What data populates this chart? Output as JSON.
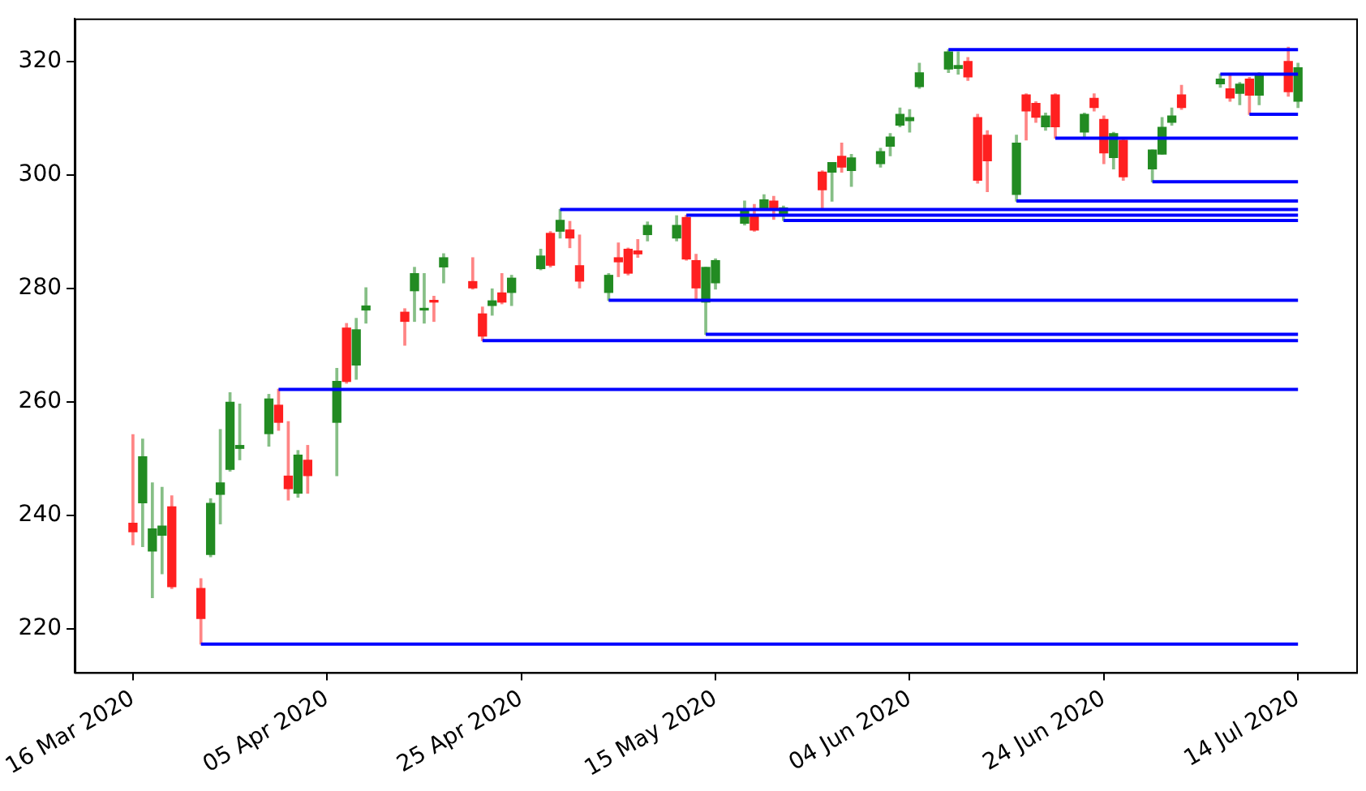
{
  "chart_data": {
    "type": "candlestick",
    "x": [
      "2020-03-16",
      "2020-03-17",
      "2020-03-18",
      "2020-03-19",
      "2020-03-20",
      "2020-03-23",
      "2020-03-24",
      "2020-03-25",
      "2020-03-26",
      "2020-03-27",
      "2020-03-30",
      "2020-03-31",
      "2020-04-01",
      "2020-04-02",
      "2020-04-03",
      "2020-04-06",
      "2020-04-07",
      "2020-04-08",
      "2020-04-09",
      "2020-04-13",
      "2020-04-14",
      "2020-04-15",
      "2020-04-16",
      "2020-04-17",
      "2020-04-20",
      "2020-04-21",
      "2020-04-22",
      "2020-04-23",
      "2020-04-24",
      "2020-04-27",
      "2020-04-28",
      "2020-04-29",
      "2020-04-30",
      "2020-05-01",
      "2020-05-04",
      "2020-05-05",
      "2020-05-06",
      "2020-05-07",
      "2020-05-08",
      "2020-05-11",
      "2020-05-12",
      "2020-05-13",
      "2020-05-14",
      "2020-05-15",
      "2020-05-18",
      "2020-05-19",
      "2020-05-20",
      "2020-05-21",
      "2020-05-22",
      "2020-05-26",
      "2020-05-27",
      "2020-05-28",
      "2020-05-29",
      "2020-06-01",
      "2020-06-02",
      "2020-06-03",
      "2020-06-04",
      "2020-06-05",
      "2020-06-08",
      "2020-06-09",
      "2020-06-10",
      "2020-06-11",
      "2020-06-12",
      "2020-06-15",
      "2020-06-16",
      "2020-06-17",
      "2020-06-18",
      "2020-06-19",
      "2020-06-22",
      "2020-06-23",
      "2020-06-24",
      "2020-06-25",
      "2020-06-26",
      "2020-06-29",
      "2020-06-30",
      "2020-07-01",
      "2020-07-02",
      "2020-07-06",
      "2020-07-07",
      "2020-07-08",
      "2020-07-09",
      "2020-07-10",
      "2020-07-13",
      "2020-07-14"
    ],
    "ohlc": [
      [
        238.6,
        254.2,
        234.8,
        237.1
      ],
      [
        242.2,
        253.4,
        234.5,
        250.3
      ],
      [
        233.7,
        245.7,
        225.5,
        237.6
      ],
      [
        236.5,
        244.9,
        229.7,
        238.1
      ],
      [
        241.5,
        243.4,
        227.1,
        227.4
      ],
      [
        227.1,
        228.8,
        217.3,
        221.8
      ],
      [
        233.1,
        242.9,
        232.7,
        242.1
      ],
      [
        243.7,
        255.1,
        238.5,
        245.7
      ],
      [
        248.1,
        261.6,
        247.8,
        259.9
      ],
      [
        251.8,
        259.6,
        249.8,
        252.3
      ],
      [
        254.4,
        261.3,
        252.2,
        260.5
      ],
      [
        259.4,
        262.2,
        255.0,
        256.4
      ],
      [
        246.9,
        256.5,
        242.7,
        244.7
      ],
      [
        243.9,
        251.4,
        243.2,
        250.6
      ],
      [
        249.7,
        252.3,
        243.9,
        247.0
      ],
      [
        256.4,
        265.9,
        247.0,
        263.6
      ],
      [
        273.0,
        273.8,
        263.3,
        263.6
      ],
      [
        266.5,
        274.7,
        264.0,
        272.7
      ],
      [
        276.2,
        280.1,
        273.9,
        276.9
      ],
      [
        275.8,
        276.4,
        270.0,
        274.2
      ],
      [
        279.6,
        283.7,
        274.2,
        282.6
      ],
      [
        276.2,
        282.6,
        273.9,
        276.4
      ],
      [
        277.8,
        278.6,
        274.2,
        277.6
      ],
      [
        283.8,
        286.1,
        281.0,
        285.4
      ],
      [
        281.2,
        285.4,
        279.9,
        280.1
      ],
      [
        275.5,
        276.7,
        270.8,
        271.6
      ],
      [
        277.0,
        279.9,
        275.3,
        277.8
      ],
      [
        279.2,
        282.6,
        277.3,
        277.6
      ],
      [
        279.3,
        282.3,
        277.0,
        281.8
      ],
      [
        283.5,
        286.9,
        283.3,
        285.7
      ],
      [
        289.7,
        290.0,
        283.8,
        284.1
      ],
      [
        290.1,
        293.9,
        288.9,
        292.0
      ],
      [
        290.3,
        291.8,
        287.2,
        288.9
      ],
      [
        284.0,
        289.4,
        280.1,
        281.3
      ],
      [
        279.3,
        282.6,
        277.9,
        282.3
      ],
      [
        285.4,
        288.0,
        282.1,
        284.7
      ],
      [
        286.9,
        287.1,
        282.4,
        282.7
      ],
      [
        286.6,
        288.6,
        285.5,
        286.1
      ],
      [
        289.5,
        291.7,
        288.4,
        291.1
      ],
      [
        288.9,
        292.8,
        288.4,
        291.1
      ],
      [
        292.5,
        292.9,
        285.0,
        285.2
      ],
      [
        284.9,
        286.0,
        277.9,
        280.1
      ],
      [
        277.6,
        283.7,
        271.9,
        283.7
      ],
      [
        281.0,
        285.2,
        279.9,
        284.9
      ],
      [
        291.5,
        295.4,
        291.2,
        293.7
      ],
      [
        292.8,
        294.8,
        290.1,
        290.3
      ],
      [
        294.2,
        296.5,
        293.9,
        295.6
      ],
      [
        295.4,
        296.2,
        292.2,
        293.9
      ],
      [
        293.0,
        294.5,
        292.0,
        294.2
      ],
      [
        300.5,
        300.7,
        294.0,
        297.4
      ],
      [
        300.5,
        302.2,
        295.4,
        302.2
      ],
      [
        303.3,
        305.6,
        300.5,
        301.4
      ],
      [
        300.8,
        303.6,
        298.0,
        303.0
      ],
      [
        302.0,
        304.7,
        301.4,
        304.1
      ],
      [
        305.1,
        307.3,
        303.4,
        306.7
      ],
      [
        308.8,
        311.8,
        308.5,
        310.7
      ],
      [
        309.6,
        311.5,
        307.6,
        310.1
      ],
      [
        315.6,
        319.7,
        315.3,
        318.0
      ],
      [
        318.7,
        322.1,
        318.1,
        321.7
      ],
      [
        318.8,
        321.7,
        317.8,
        319.3
      ],
      [
        320.0,
        320.7,
        316.7,
        317.3
      ],
      [
        310.1,
        310.7,
        298.6,
        299.1
      ],
      [
        307.0,
        307.8,
        297.1,
        302.5
      ],
      [
        296.6,
        307.0,
        295.4,
        305.6
      ],
      [
        314.1,
        314.3,
        306.2,
        311.3
      ],
      [
        312.6,
        312.9,
        309.3,
        310.2
      ],
      [
        308.5,
        310.9,
        307.9,
        310.4
      ],
      [
        314.1,
        314.3,
        306.5,
        308.5
      ],
      [
        307.6,
        310.9,
        306.5,
        310.7
      ],
      [
        313.5,
        314.3,
        311.3,
        311.9
      ],
      [
        309.8,
        310.4,
        302.0,
        303.9
      ],
      [
        303.1,
        307.5,
        301.1,
        307.3
      ],
      [
        306.1,
        306.4,
        299.1,
        299.7
      ],
      [
        301.1,
        304.4,
        298.8,
        304.4
      ],
      [
        303.7,
        310.1,
        303.7,
        308.4
      ],
      [
        309.3,
        311.8,
        308.8,
        310.4
      ],
      [
        314.1,
        315.8,
        311.6,
        311.9
      ],
      [
        316.1,
        317.8,
        315.5,
        316.9
      ],
      [
        315.2,
        317.6,
        313.0,
        313.6
      ],
      [
        314.4,
        316.3,
        312.4,
        316.0
      ],
      [
        316.9,
        317.2,
        310.7,
        314.1
      ],
      [
        314.1,
        318.0,
        312.4,
        317.5
      ],
      [
        320.0,
        322.5,
        313.9,
        314.7
      ],
      [
        313.0,
        319.7,
        311.9,
        318.9
      ]
    ],
    "colors": [
      "#ff2020",
      "#228b22",
      "#228b22",
      "#228b22",
      "#ff2020",
      "#ff2020",
      "#228b22",
      "#228b22",
      "#228b22",
      "#228b22",
      "#228b22",
      "#ff2020",
      "#ff2020",
      "#228b22",
      "#ff2020",
      "#228b22",
      "#ff2020",
      "#228b22",
      "#228b22",
      "#ff2020",
      "#228b22",
      "#228b22",
      "#ff2020",
      "#228b22",
      "#ff2020",
      "#ff2020",
      "#228b22",
      "#ff2020",
      "#228b22",
      "#228b22",
      "#ff2020",
      "#228b22",
      "#ff2020",
      "#ff2020",
      "#228b22",
      "#ff2020",
      "#ff2020",
      "#ff2020",
      "#228b22",
      "#228b22",
      "#ff2020",
      "#ff2020",
      "#228b22",
      "#228b22",
      "#228b22",
      "#ff2020",
      "#228b22",
      "#ff2020",
      "#228b22",
      "#ff2020",
      "#228b22",
      "#ff2020",
      "#228b22",
      "#228b22",
      "#228b22",
      "#228b22",
      "#228b22",
      "#228b22",
      "#228b22",
      "#228b22",
      "#ff2020",
      "#ff2020",
      "#ff2020",
      "#228b22",
      "#ff2020",
      "#ff2020",
      "#228b22",
      "#ff2020",
      "#228b22",
      "#ff2020",
      "#ff2020",
      "#228b22",
      "#ff2020",
      "#228b22",
      "#228b22",
      "#228b22",
      "#ff2020",
      "#228b22",
      "#ff2020",
      "#228b22",
      "#ff2020",
      "#228b22",
      "#ff2020",
      "#228b22"
    ],
    "series": [
      {
        "type": "line",
        "color": "#0000ff",
        "x": [
          "2020-03-23",
          "2020-07-14"
        ],
        "values": [
          217.3,
          217.3
        ]
      },
      {
        "type": "line",
        "color": "#0000ff",
        "x": [
          "2020-03-31",
          "2020-07-14"
        ],
        "values": [
          262.2,
          262.2
        ]
      },
      {
        "type": "line",
        "color": "#0000ff",
        "x": [
          "2020-04-21",
          "2020-07-14"
        ],
        "values": [
          270.8,
          270.8
        ]
      },
      {
        "type": "line",
        "color": "#0000ff",
        "x": [
          "2020-04-29",
          "2020-07-14"
        ],
        "values": [
          293.9,
          293.9
        ]
      },
      {
        "type": "line",
        "color": "#0000ff",
        "x": [
          "2020-05-04",
          "2020-07-14"
        ],
        "values": [
          277.9,
          277.9
        ]
      },
      {
        "type": "line",
        "color": "#0000ff",
        "x": [
          "2020-05-12",
          "2020-07-14"
        ],
        "values": [
          292.9,
          292.9
        ]
      },
      {
        "type": "line",
        "color": "#0000ff",
        "x": [
          "2020-05-14",
          "2020-07-14"
        ],
        "values": [
          271.9,
          271.9
        ]
      },
      {
        "type": "line",
        "color": "#0000ff",
        "x": [
          "2020-05-22",
          "2020-07-14"
        ],
        "values": [
          292.0,
          292.0
        ]
      },
      {
        "type": "line",
        "color": "#0000ff",
        "x": [
          "2020-06-08",
          "2020-07-14"
        ],
        "values": [
          322.1,
          322.1
        ]
      },
      {
        "type": "line",
        "color": "#0000ff",
        "x": [
          "2020-06-15",
          "2020-07-14"
        ],
        "values": [
          295.4,
          295.4
        ]
      },
      {
        "type": "line",
        "color": "#0000ff",
        "x": [
          "2020-06-19",
          "2020-07-14"
        ],
        "values": [
          306.5,
          306.5
        ]
      },
      {
        "type": "line",
        "color": "#0000ff",
        "x": [
          "2020-06-29",
          "2020-07-14"
        ],
        "values": [
          298.8,
          298.8
        ]
      },
      {
        "type": "line",
        "color": "#0000ff",
        "x": [
          "2020-07-06",
          "2020-07-14"
        ],
        "values": [
          317.8,
          317.8
        ]
      },
      {
        "type": "line",
        "color": "#0000ff",
        "x": [
          "2020-07-09",
          "2020-07-14"
        ],
        "values": [
          310.7,
          310.7
        ]
      }
    ],
    "xlim": [
      "2020-03-10",
      "2020-07-20"
    ],
    "xticks": [
      {
        "value": "2020-03-16",
        "label": "16 Mar 2020"
      },
      {
        "value": "2020-04-05",
        "label": "05 Apr 2020"
      },
      {
        "value": "2020-04-25",
        "label": "25 Apr 2020"
      },
      {
        "value": "2020-05-15",
        "label": "15 May 2020"
      },
      {
        "value": "2020-06-04",
        "label": "04 Jun 2020"
      },
      {
        "value": "2020-06-24",
        "label": "24 Jun 2020"
      },
      {
        "value": "2020-07-14",
        "label": "14 Jul 2020"
      }
    ],
    "ylim": [
      212.3,
      327.6
    ],
    "yticks": [
      220,
      240,
      260,
      280,
      300,
      320
    ],
    "grid": false,
    "legend": false
  }
}
